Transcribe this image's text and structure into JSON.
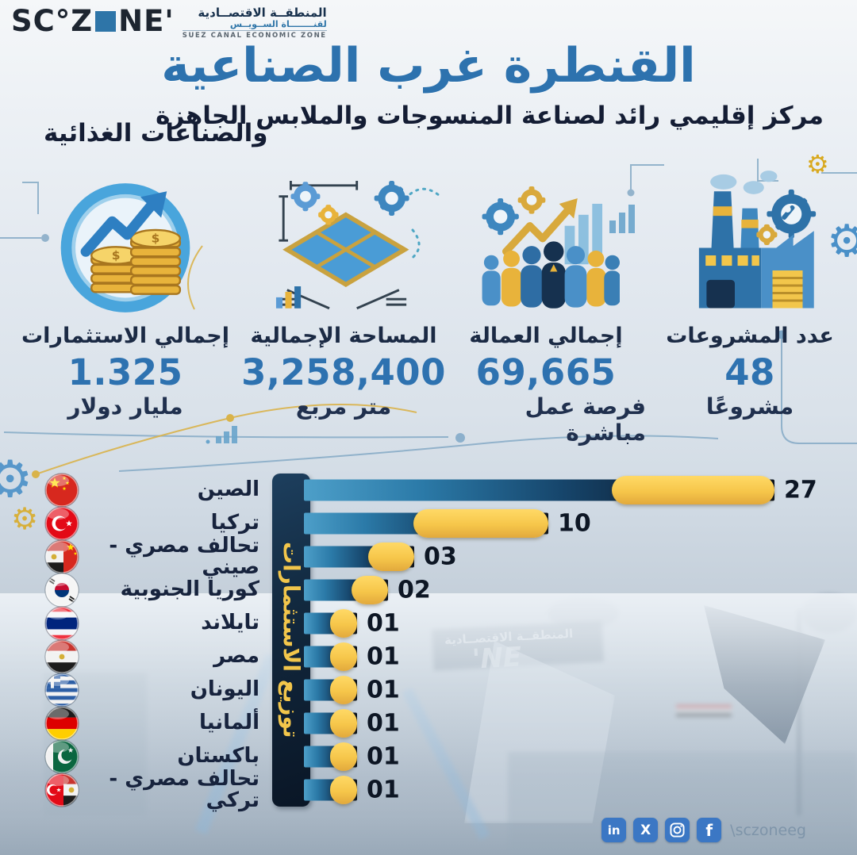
{
  "logo": {
    "wordmark_left": "SC°Z",
    "wordmark_right": "NE'",
    "arabic_line1": "المنطقــة الاقتصــادية",
    "arabic_line2": "لقنــــــــاة الســويــس",
    "english_line": "SUEZ CANAL ECONOMIC ZONE"
  },
  "header": {
    "title": "القنطرة غرب الصناعية",
    "subtitle_line1": "مركز إقليمي رائد لصناعة المنسوجات والملابس الجاهزة",
    "subtitle_line2": "والصناعات الغذائية"
  },
  "stats": [
    {
      "label": "إجمالي الاستثمارات",
      "value": "1.325",
      "unit": "مليار دولار",
      "icon": "coins-growth-icon"
    },
    {
      "label": "المساحة الإجمالية",
      "value": "3,258,400",
      "unit": "متر مربع",
      "icon": "land-plot-icon"
    },
    {
      "label": "إجمالي العمالة",
      "value": "69,665",
      "unit": "فرصة عمل مباشرة",
      "icon": "workforce-icon"
    },
    {
      "label": "عدد المشروعات",
      "value": "48",
      "unit": "مشروعًا",
      "icon": "factory-icon"
    }
  ],
  "chart_data": {
    "type": "bar",
    "orientation": "horizontal",
    "axis_title": "توزيع الاستثمارات",
    "categories": [
      "الصين",
      "تركيا",
      "تحالف مصري - صيني",
      "كوريا الجنوبية",
      "تايلاند",
      "مصر",
      "اليونان",
      "ألمانيا",
      "باكستان",
      "تحالف مصري - تركي"
    ],
    "values": [
      27,
      10,
      3,
      2,
      1,
      1,
      1,
      1,
      1,
      1
    ],
    "value_labels": [
      "27",
      "10",
      "03",
      "02",
      "01",
      "01",
      "01",
      "01",
      "01",
      "01"
    ],
    "flags": [
      "china",
      "turkey",
      "egypt-china",
      "south-korea",
      "thailand",
      "egypt",
      "greece",
      "germany",
      "pakistan",
      "egypt-turkey"
    ],
    "xlim": [
      0,
      27
    ],
    "grid": false,
    "colors": {
      "bar_gradient_start": "#4d9fc9",
      "bar_gradient_end": "#0b121d",
      "pill": "#f6c64a",
      "axis_background": "#12293f",
      "axis_text": "#f2c64b",
      "value_text": "#0d1624"
    }
  },
  "photo": {
    "gate_sign_line1": "المنطقــة الاقتصــادية",
    "gate_sign_logo": "NE'"
  },
  "footer": {
    "social": [
      "linkedin",
      "x",
      "instagram",
      "facebook"
    ],
    "handle": "\\sczoneeg",
    "linkedin_glyph": "in",
    "x_glyph": "X",
    "facebook_glyph": "f"
  }
}
